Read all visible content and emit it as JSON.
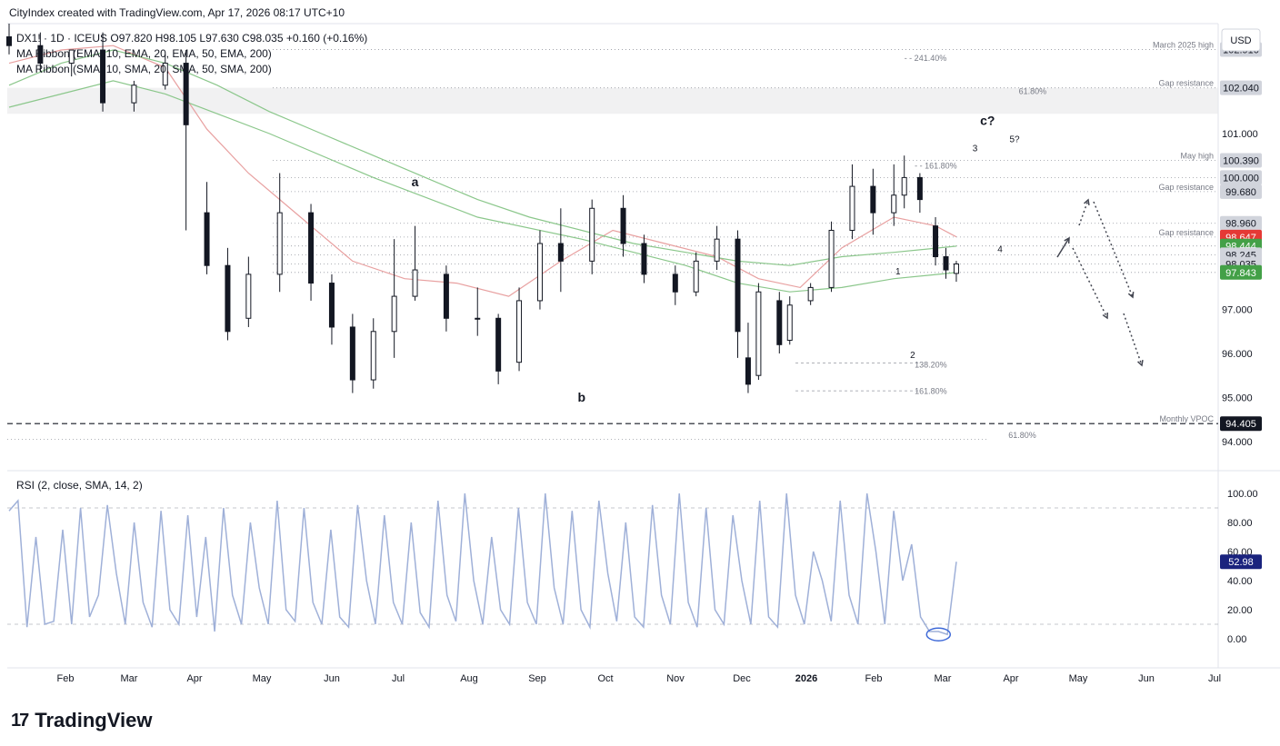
{
  "header": {
    "attribution": "CityIndex created with TradingView.com, Apr 17, 2026 08:17 UTC+10",
    "symbol_line": "DX1! · 1D · ICEUS  O97.820  H98.105  L97.630  C98.035  +0.160 (+0.16%)",
    "ma_ema": "MA Ribbon (EMA, 10, EMA, 20, EMA, 50, EMA, 200)",
    "ma_sma": "MA Ribbon (SMA, 10, SMA, 20, SMA, 50, SMA, 200)",
    "currency": "USD"
  },
  "rsi": {
    "label": "RSI (2, close, SMA, 14, 2)",
    "current_value": "52.98",
    "ticks": [
      "100.00",
      "80.00",
      "60.00",
      "40.00",
      "20.00",
      "0.00"
    ]
  },
  "brand": {
    "name": "TradingView",
    "mark": "17"
  },
  "colors": {
    "bull": "#26a69a",
    "candle": "#131722",
    "ema_red": "#e8a0a0",
    "sma_green": "#8bc78b",
    "rsi_line": "#9fb0d8",
    "tag_red": "#e53935",
    "tag_green": "#43a047",
    "tag_dark": "#131722",
    "tag_gray": "#d1d4dc",
    "tag_blue": "#1a237e"
  },
  "chart_data": {
    "type": "candlestick",
    "ylim": [
      93.5,
      103.5
    ],
    "price_ticks": [
      "103.000",
      "102.000",
      "101.000",
      "100.000",
      "99.000",
      "98.000",
      "97.000",
      "96.000",
      "95.000",
      "94.000"
    ],
    "x_tick_labels": [
      "Feb",
      "Mar",
      "Apr",
      "May",
      "Jun",
      "Jul",
      "Aug",
      "Sep",
      "Oct",
      "Nov",
      "Dec",
      "2026",
      "Feb",
      "Mar",
      "Apr",
      "May",
      "Jun",
      "Jul"
    ],
    "levels": [
      {
        "label": "March 2025 high",
        "tag": "102.910",
        "value": 102.91
      },
      {
        "label": "Gap resistance",
        "tag": "102.040",
        "value": 102.04
      },
      {
        "label": "May high",
        "tag": "100.390",
        "value": 100.39
      },
      {
        "label": "",
        "tag": "100.000",
        "value": 100.0
      },
      {
        "label": "Gap resistance",
        "tag": "99.680",
        "value": 99.68
      },
      {
        "label": "",
        "tag": "98.960",
        "value": 98.96
      },
      {
        "label": "Gap resistance",
        "tag": "98.647",
        "value": 98.647
      },
      {
        "label": "",
        "tag": "98.444",
        "value": 98.444
      },
      {
        "label": "",
        "tag": "98.245",
        "value": 98.245
      },
      {
        "label": "",
        "tag": "98.035",
        "value": 98.035
      },
      {
        "label": "",
        "tag": "97.843",
        "value": 97.843
      },
      {
        "label": "Monthly VPOC",
        "tag": "94.405",
        "value": 94.405
      }
    ],
    "fib_labels": [
      "241.40%",
      "61.80%",
      "161.80%",
      "138.20%",
      "161.80%",
      "61.80%"
    ],
    "wave_labels": [
      "a",
      "b",
      "c?",
      "1",
      "2",
      "3",
      "4",
      "5?"
    ],
    "moving_averages": [
      "EMA 10",
      "EMA 20",
      "EMA 50",
      "EMA 200",
      "SMA 10",
      "SMA 20",
      "SMA 50",
      "SMA 200"
    ],
    "candles": [
      {
        "x": 0.0,
        "o": 103.2,
        "h": 103.5,
        "c": 103.0,
        "l": 102.8
      },
      {
        "x": 0.03,
        "o": 103.0,
        "h": 103.3,
        "c": 102.6,
        "l": 102.4
      },
      {
        "x": 0.06,
        "o": 102.6,
        "h": 102.9,
        "c": 102.9,
        "l": 102.3
      },
      {
        "x": 0.09,
        "o": 102.9,
        "h": 103.3,
        "c": 101.7,
        "l": 101.5
      },
      {
        "x": 0.12,
        "o": 101.7,
        "h": 102.2,
        "c": 102.1,
        "l": 101.5
      },
      {
        "x": 0.15,
        "o": 102.1,
        "h": 102.8,
        "c": 102.6,
        "l": 102.0
      },
      {
        "x": 0.17,
        "o": 102.6,
        "h": 102.9,
        "c": 101.2,
        "l": 98.8
      },
      {
        "x": 0.19,
        "o": 99.2,
        "h": 99.9,
        "c": 98.0,
        "l": 97.8
      },
      {
        "x": 0.21,
        "o": 98.0,
        "h": 98.4,
        "c": 96.5,
        "l": 96.3
      },
      {
        "x": 0.23,
        "o": 96.8,
        "h": 98.2,
        "c": 97.8,
        "l": 96.6
      },
      {
        "x": 0.26,
        "o": 97.8,
        "h": 100.1,
        "c": 99.2,
        "l": 97.4
      },
      {
        "x": 0.29,
        "o": 99.2,
        "h": 99.4,
        "c": 97.6,
        "l": 97.2
      },
      {
        "x": 0.31,
        "o": 97.6,
        "h": 97.8,
        "c": 96.6,
        "l": 96.2
      },
      {
        "x": 0.33,
        "o": 96.6,
        "h": 96.9,
        "c": 95.4,
        "l": 95.1
      },
      {
        "x": 0.35,
        "o": 95.4,
        "h": 96.8,
        "c": 96.5,
        "l": 95.2
      },
      {
        "x": 0.37,
        "o": 96.5,
        "h": 98.6,
        "c": 97.3,
        "l": 95.9
      },
      {
        "x": 0.39,
        "o": 97.3,
        "h": 98.9,
        "c": 97.9,
        "l": 97.2
      },
      {
        "x": 0.42,
        "o": 97.8,
        "h": 98.0,
        "c": 96.8,
        "l": 96.5
      },
      {
        "x": 0.45,
        "o": 96.8,
        "h": 97.5,
        "c": 96.8,
        "l": 96.4
      },
      {
        "x": 0.47,
        "o": 96.8,
        "h": 96.9,
        "c": 95.6,
        "l": 95.3
      },
      {
        "x": 0.49,
        "o": 95.8,
        "h": 97.5,
        "c": 97.2,
        "l": 95.6
      },
      {
        "x": 0.51,
        "o": 97.2,
        "h": 98.8,
        "c": 98.5,
        "l": 97.0
      },
      {
        "x": 0.53,
        "o": 98.5,
        "h": 99.3,
        "c": 98.1,
        "l": 97.4
      },
      {
        "x": 0.56,
        "o": 98.1,
        "h": 99.5,
        "c": 99.3,
        "l": 97.8
      },
      {
        "x": 0.59,
        "o": 99.3,
        "h": 99.6,
        "c": 98.5,
        "l": 98.2
      },
      {
        "x": 0.61,
        "o": 98.5,
        "h": 98.7,
        "c": 97.8,
        "l": 97.6
      },
      {
        "x": 0.64,
        "o": 97.8,
        "h": 98.0,
        "c": 97.4,
        "l": 97.1
      },
      {
        "x": 0.66,
        "o": 97.4,
        "h": 98.3,
        "c": 98.1,
        "l": 97.3
      },
      {
        "x": 0.68,
        "o": 98.1,
        "h": 98.9,
        "c": 98.6,
        "l": 97.9
      },
      {
        "x": 0.7,
        "o": 98.6,
        "h": 98.8,
        "c": 96.5,
        "l": 95.9
      },
      {
        "x": 0.71,
        "o": 95.9,
        "h": 96.7,
        "c": 95.3,
        "l": 95.1
      },
      {
        "x": 0.72,
        "o": 95.5,
        "h": 97.6,
        "c": 97.4,
        "l": 95.4
      },
      {
        "x": 0.74,
        "o": 97.2,
        "h": 97.4,
        "c": 96.2,
        "l": 96.0
      },
      {
        "x": 0.75,
        "o": 96.3,
        "h": 97.3,
        "c": 97.1,
        "l": 96.2
      },
      {
        "x": 0.77,
        "o": 97.2,
        "h": 97.6,
        "c": 97.5,
        "l": 97.1
      },
      {
        "x": 0.79,
        "o": 97.5,
        "h": 99.0,
        "c": 98.8,
        "l": 97.4
      },
      {
        "x": 0.81,
        "o": 98.8,
        "h": 100.3,
        "c": 99.8,
        "l": 98.6
      },
      {
        "x": 0.83,
        "o": 99.8,
        "h": 100.2,
        "c": 99.2,
        "l": 98.7
      },
      {
        "x": 0.85,
        "o": 99.2,
        "h": 100.3,
        "c": 99.6,
        "l": 98.9
      },
      {
        "x": 0.86,
        "o": 99.6,
        "h": 100.5,
        "c": 100.0,
        "l": 99.3
      },
      {
        "x": 0.875,
        "o": 100.0,
        "h": 100.1,
        "c": 99.5,
        "l": 99.2
      },
      {
        "x": 0.89,
        "o": 98.9,
        "h": 99.1,
        "c": 98.2,
        "l": 98.0
      },
      {
        "x": 0.9,
        "o": 98.2,
        "h": 98.4,
        "c": 97.9,
        "l": 97.7
      },
      {
        "x": 0.91,
        "o": 97.82,
        "h": 98.105,
        "c": 98.035,
        "l": 97.63
      }
    ],
    "ema_ribbon": [
      [
        0.0,
        102.6
      ],
      [
        0.05,
        102.9
      ],
      [
        0.1,
        103.0
      ],
      [
        0.15,
        102.5
      ],
      [
        0.19,
        101.1
      ],
      [
        0.23,
        100.1
      ],
      [
        0.28,
        99.1
      ],
      [
        0.33,
        98.1
      ],
      [
        0.38,
        97.7
      ],
      [
        0.43,
        97.6
      ],
      [
        0.48,
        97.3
      ],
      [
        0.53,
        98.1
      ],
      [
        0.58,
        98.8
      ],
      [
        0.63,
        98.5
      ],
      [
        0.68,
        98.2
      ],
      [
        0.72,
        97.7
      ],
      [
        0.76,
        97.5
      ],
      [
        0.8,
        98.4
      ],
      [
        0.85,
        99.1
      ],
      [
        0.89,
        98.9
      ],
      [
        0.91,
        98.65
      ]
    ],
    "sma_ribbon": [
      [
        0.0,
        102.1
      ],
      [
        0.05,
        102.6
      ],
      [
        0.1,
        102.9
      ],
      [
        0.15,
        102.6
      ],
      [
        0.2,
        102.1
      ],
      [
        0.25,
        101.5
      ],
      [
        0.3,
        101.0
      ],
      [
        0.35,
        100.5
      ],
      [
        0.4,
        100.0
      ],
      [
        0.45,
        99.5
      ],
      [
        0.5,
        99.1
      ],
      [
        0.55,
        98.8
      ],
      [
        0.6,
        98.5
      ],
      [
        0.65,
        98.3
      ],
      [
        0.7,
        98.1
      ],
      [
        0.75,
        98.0
      ],
      [
        0.8,
        98.2
      ],
      [
        0.85,
        98.3
      ],
      [
        0.91,
        98.44
      ]
    ],
    "sma200": [
      [
        0.0,
        101.6
      ],
      [
        0.1,
        102.2
      ],
      [
        0.15,
        101.9
      ],
      [
        0.25,
        101.0
      ],
      [
        0.35,
        100.0
      ],
      [
        0.45,
        99.1
      ],
      [
        0.55,
        98.6
      ],
      [
        0.65,
        98.0
      ],
      [
        0.7,
        97.6
      ],
      [
        0.75,
        97.4
      ],
      [
        0.8,
        97.5
      ],
      [
        0.85,
        97.7
      ],
      [
        0.91,
        97.84
      ]
    ],
    "rsi_values": [
      88,
      95,
      8,
      70,
      10,
      12,
      75,
      10,
      90,
      15,
      30,
      92,
      45,
      10,
      80,
      25,
      8,
      88,
      20,
      10,
      85,
      15,
      70,
      5,
      90,
      30,
      10,
      80,
      35,
      10,
      95,
      20,
      12,
      90,
      25,
      10,
      75,
      15,
      8,
      92,
      40,
      10,
      85,
      25,
      10,
      80,
      18,
      8,
      95,
      30,
      12,
      100,
      40,
      10,
      70,
      20,
      10,
      90,
      25,
      10,
      100,
      35,
      10,
      88,
      20,
      8,
      95,
      45,
      12,
      80,
      15,
      8,
      92,
      30,
      10,
      100,
      25,
      8,
      90,
      20,
      10,
      85,
      40,
      10,
      95,
      15,
      8,
      100,
      30,
      10,
      60,
      40,
      12,
      95,
      30,
      10,
      100,
      60,
      10,
      88,
      40,
      65,
      15,
      5,
      5,
      3,
      52.98
    ],
    "rsi_ylim": [
      -5,
      105
    ]
  }
}
